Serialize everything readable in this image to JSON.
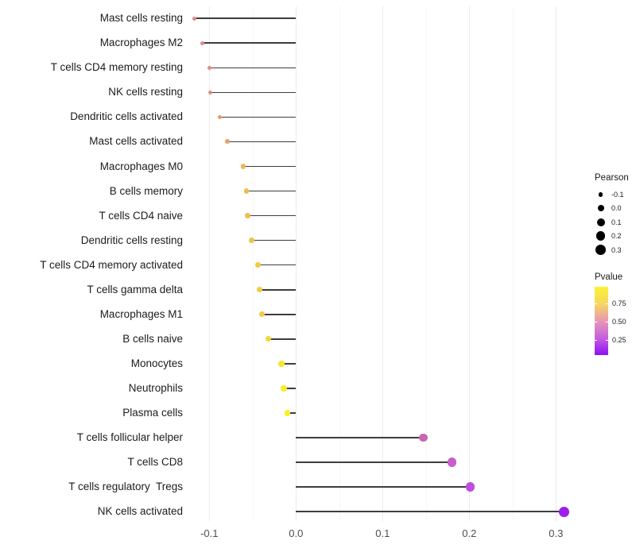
{
  "chart_data": {
    "type": "scatter",
    "variant": "lollipop",
    "orientation": "horizontal",
    "xlabel": "",
    "ylabel": "",
    "x_ticks": [
      "-0.1",
      "0.0",
      "0.1",
      "0.2",
      "0.3"
    ],
    "x_tick_values": [
      -0.1,
      0.0,
      0.1,
      0.2,
      0.3
    ],
    "x_minor_tick_values": [
      -0.05,
      0.05,
      0.15,
      0.25
    ],
    "xlim": [
      -0.138,
      0.331
    ],
    "grid": "vertical-only",
    "baseline": 0.0,
    "stick_color": "#3d3d3d",
    "points": [
      {
        "category": "Mast cells resting",
        "pearson": -0.117,
        "color": "#e08a8a"
      },
      {
        "category": "Macrophages M2",
        "pearson": -0.108,
        "color": "#e08a88"
      },
      {
        "category": "T cells CD4 memory resting",
        "pearson": -0.1,
        "color": "#e18b85"
      },
      {
        "category": "NK cells resting",
        "pearson": -0.099,
        "color": "#e18b85"
      },
      {
        "category": "Dendritic cells activated",
        "pearson": -0.088,
        "color": "#e49b72"
      },
      {
        "category": "Mast cells activated",
        "pearson": -0.079,
        "color": "#e5a06e"
      },
      {
        "category": "Macrophages M0",
        "pearson": -0.061,
        "color": "#eaba54"
      },
      {
        "category": "B cells memory",
        "pearson": -0.057,
        "color": "#ebbe50"
      },
      {
        "category": "T cells CD4 naive",
        "pearson": -0.056,
        "color": "#ecc04d"
      },
      {
        "category": "Dendritic cells resting",
        "pearson": -0.051,
        "color": "#edc44a"
      },
      {
        "category": "T cells CD4 memory activated",
        "pearson": -0.044,
        "color": "#f0ca41"
      },
      {
        "category": "T cells gamma delta",
        "pearson": -0.042,
        "color": "#f1cc3e"
      },
      {
        "category": "Macrophages M1",
        "pearson": -0.039,
        "color": "#f1ce3c"
      },
      {
        "category": "B cells naive",
        "pearson": -0.032,
        "color": "#f4d733"
      },
      {
        "category": "Monocytes",
        "pearson": -0.017,
        "color": "#f8e729"
      },
      {
        "category": "Neutrophils",
        "pearson": -0.014,
        "color": "#f9eb24"
      },
      {
        "category": "Plasma cells",
        "pearson": -0.01,
        "color": "#fbf11e"
      },
      {
        "category": "T cells follicular helper",
        "pearson": 0.147,
        "color": "#c966b1"
      },
      {
        "category": "T cells CD8",
        "pearson": 0.18,
        "color": "#ca5ecb"
      },
      {
        "category": "T cells regulatory  Tregs",
        "pearson": 0.201,
        "color": "#c04edd"
      },
      {
        "category": "NK cells activated",
        "pearson": 0.309,
        "color": "#9c1ef0"
      }
    ],
    "legend_size": {
      "title": "Pearson",
      "entries": [
        {
          "label": "-0.1",
          "value": -0.1
        },
        {
          "label": "0.0",
          "value": 0.0
        },
        {
          "label": "0.1",
          "value": 0.1
        },
        {
          "label": "0.2",
          "value": 0.2
        },
        {
          "label": "0.3",
          "value": 0.3
        }
      ]
    },
    "legend_color": {
      "title": "Pvalue",
      "tick_labels": [
        "0.75",
        "0.50",
        "0.25"
      ],
      "gradient_top_color": "#faf235",
      "gradient_bottom_color": "#8f10f2",
      "high_is_yellow": true
    }
  },
  "layout_colors": {
    "background": "#ffffff",
    "major_grid": "#ebebeb",
    "minor_grid": "#f6f6f6",
    "axis_text": "#4d4d4d",
    "label_text": "#1c1c1c"
  }
}
